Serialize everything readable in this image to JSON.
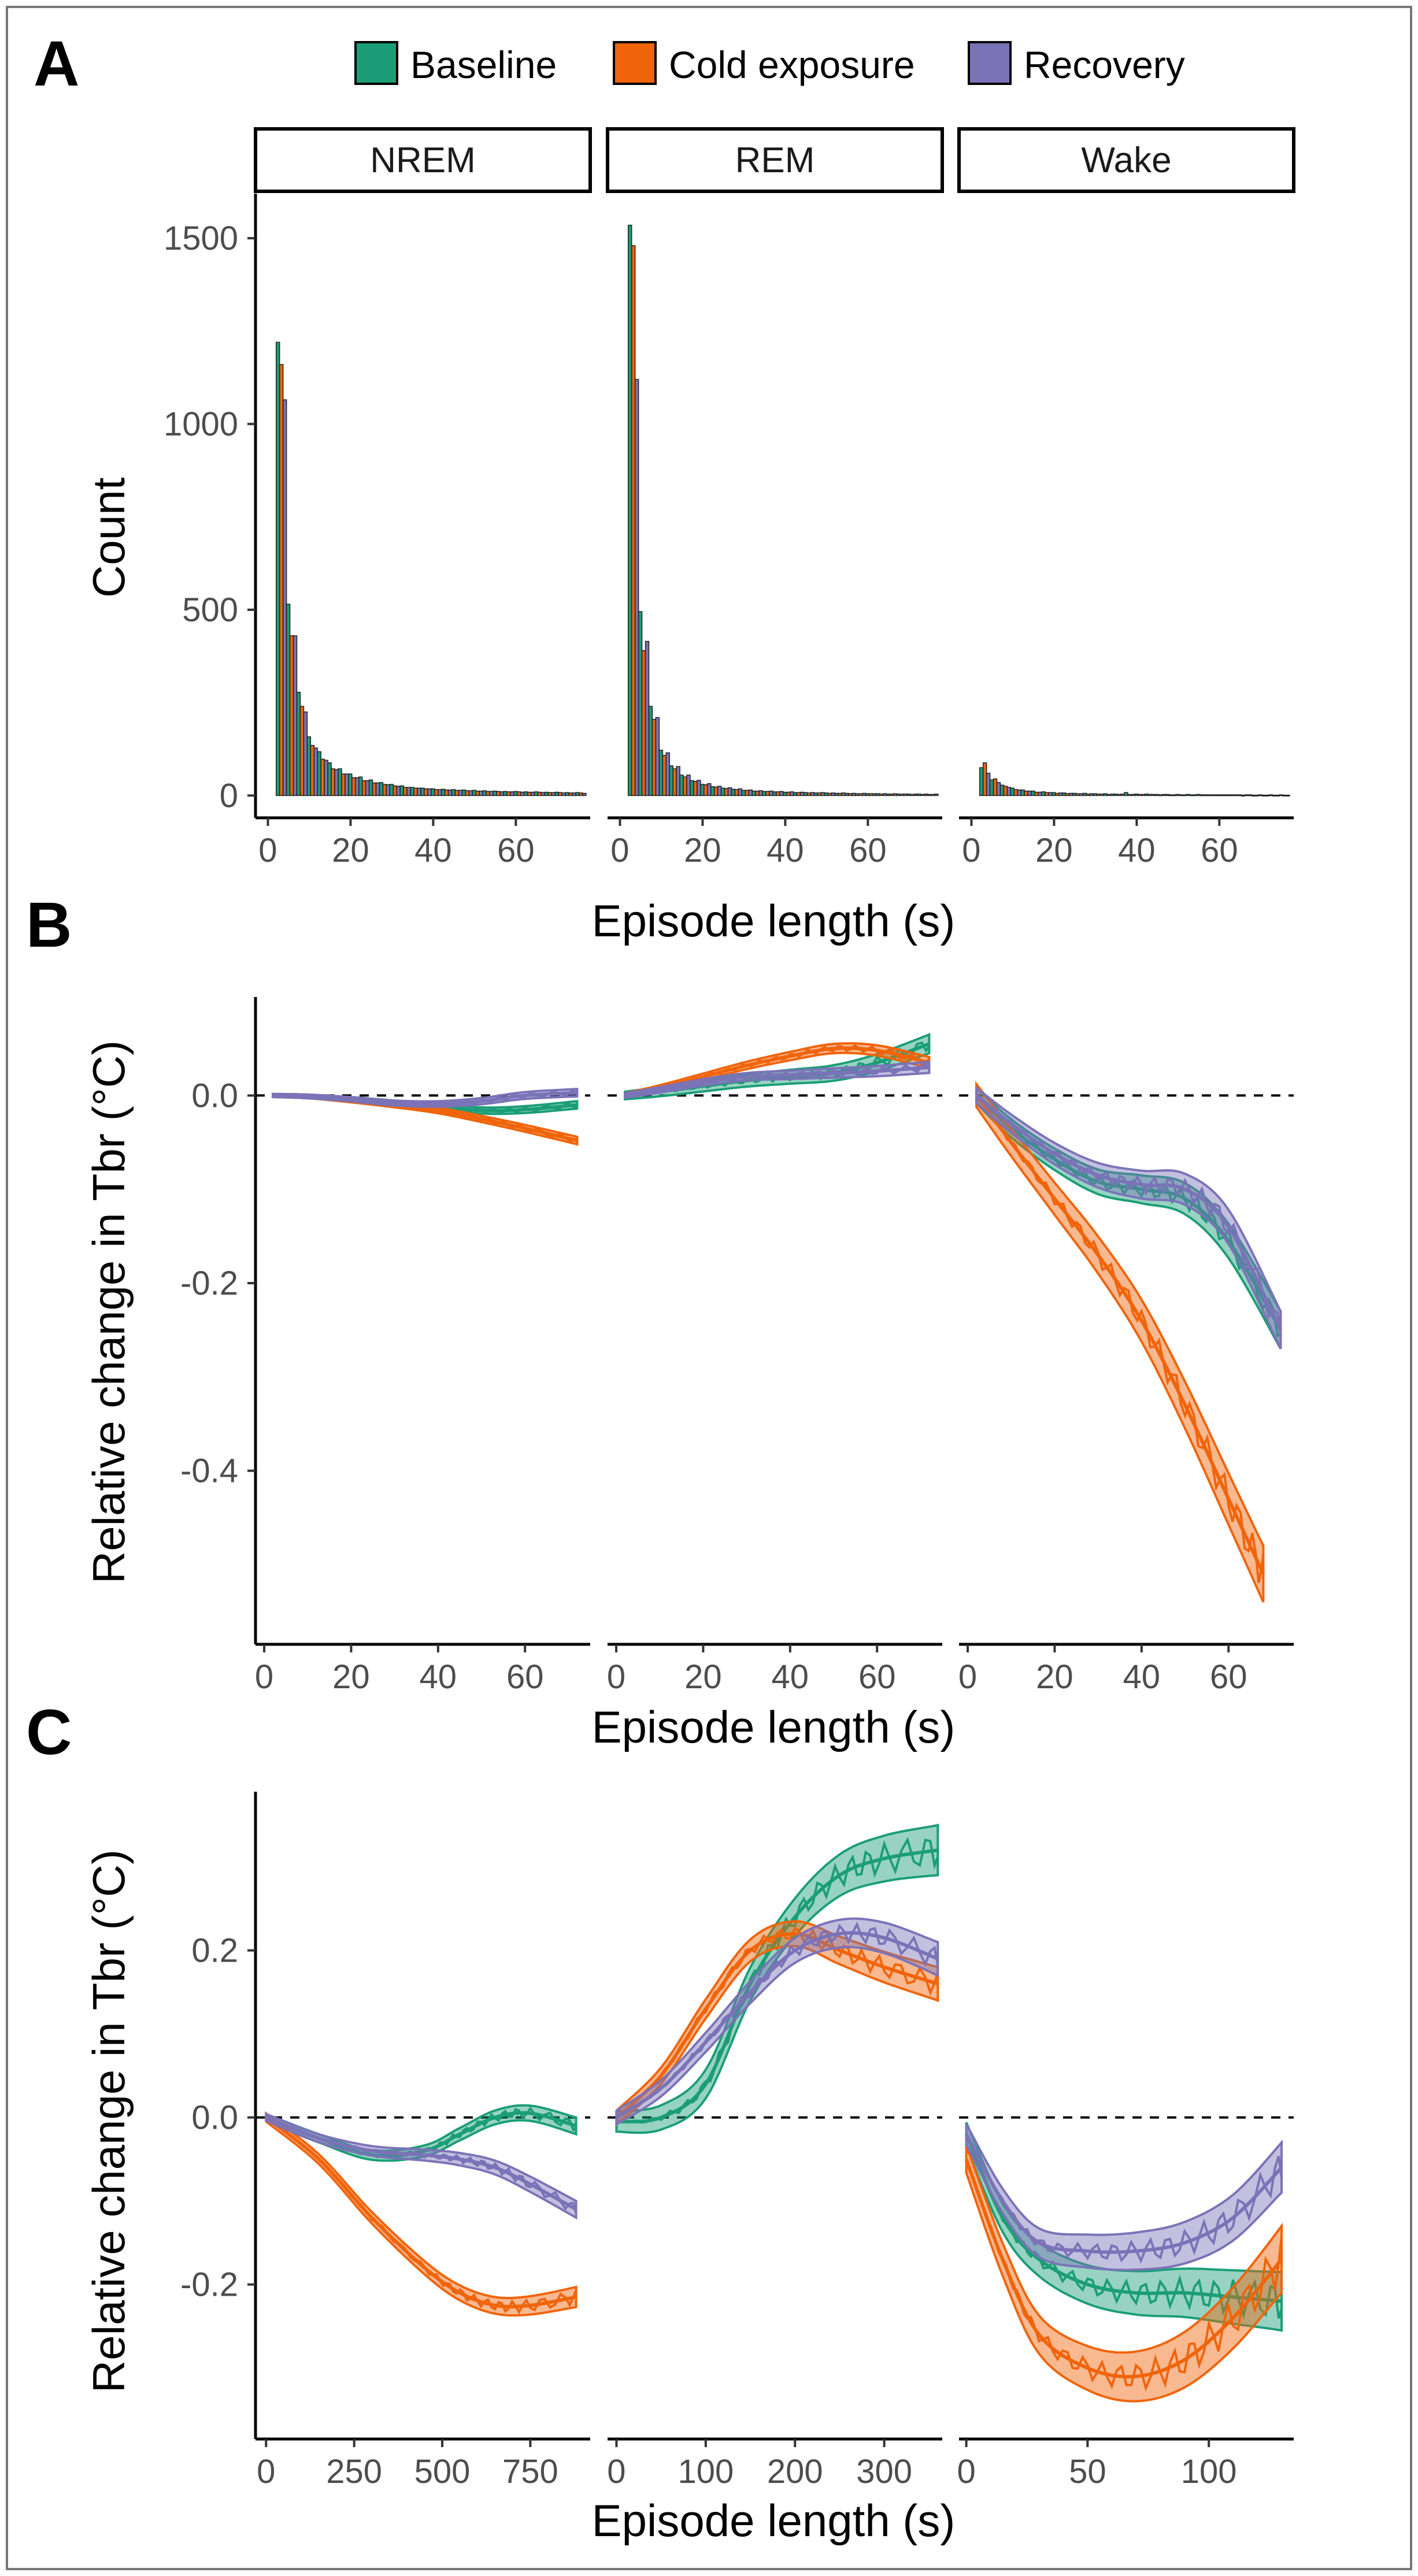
{
  "colors": {
    "Baseline": "#1b9e77",
    "Cold exposure": "#f0640a",
    "Recovery": "#7b73b8"
  },
  "legend": {
    "items": [
      "Baseline",
      "Cold exposure",
      "Recovery"
    ]
  },
  "facets": [
    "NREM",
    "REM",
    "Wake"
  ],
  "panel_labels": {
    "a": "A",
    "b": "B",
    "c": "C"
  },
  "chart_data": [
    {
      "id": "A",
      "type": "bar",
      "title": "",
      "xlabel": "Episode length (s)",
      "ylabel": "Count",
      "xlim": [
        -3,
        78
      ],
      "ylim": [
        -60,
        1620
      ],
      "xticks": [
        0,
        20,
        40,
        60
      ],
      "yticks": [
        0,
        500,
        1000,
        1500
      ],
      "bin_width": 2.5,
      "bin_starts": [
        2,
        4.5,
        7,
        9.5,
        12,
        14.5,
        17,
        19.5,
        22,
        24.5,
        27,
        29.5,
        32,
        34.5,
        37,
        39.5,
        42,
        44.5,
        47,
        49.5,
        52,
        54.5,
        57,
        59.5,
        62,
        64.5,
        67,
        69.5,
        72,
        74.5
      ],
      "facets": [
        {
          "name": "NREM",
          "series": [
            {
              "name": "Baseline",
              "values": [
                1220,
                515,
                278,
                158,
                118,
                88,
                72,
                58,
                50,
                42,
                35,
                30,
                26,
                22,
                20,
                18,
                17,
                16,
                15,
                14,
                13,
                12,
                11,
                11,
                10,
                10,
                9,
                9,
                8,
                8
              ]
            },
            {
              "name": "Cold exposure",
              "values": [
                1160,
                430,
                240,
                135,
                98,
                72,
                58,
                48,
                40,
                34,
                30,
                26,
                22,
                20,
                18,
                16,
                15,
                14,
                13,
                12,
                11,
                11,
                10,
                10,
                9,
                9,
                8,
                8,
                7,
                7
              ]
            },
            {
              "name": "Recovery",
              "values": [
                1065,
                430,
                225,
                128,
                95,
                70,
                58,
                48,
                40,
                34,
                29,
                25,
                22,
                20,
                18,
                16,
                15,
                14,
                13,
                12,
                11,
                10,
                10,
                9,
                9,
                8,
                8,
                7,
                7,
                6
              ]
            }
          ]
        },
        {
          "name": "REM",
          "series": [
            {
              "name": "Baseline",
              "values": [
                1535,
                495,
                240,
                122,
                80,
                55,
                40,
                30,
                24,
                20,
                17,
                14,
                12,
                11,
                10,
                9,
                8,
                8,
                7,
                7,
                6,
                6,
                5,
                5,
                5,
                4,
                4,
                4,
                4,
                3
              ]
            },
            {
              "name": "Cold exposure",
              "values": [
                1480,
                390,
                205,
                108,
                72,
                50,
                38,
                29,
                23,
                19,
                16,
                14,
                12,
                11,
                10,
                9,
                8,
                7,
                7,
                6,
                6,
                5,
                5,
                5,
                4,
                4,
                4,
                3,
                3,
                3
              ]
            },
            {
              "name": "Recovery",
              "values": [
                1120,
                415,
                210,
                115,
                78,
                55,
                41,
                32,
                25,
                21,
                18,
                15,
                13,
                12,
                11,
                10,
                9,
                8,
                8,
                7,
                7,
                6,
                6,
                5,
                5,
                5,
                4,
                4,
                4,
                4
              ]
            }
          ]
        },
        {
          "name": "Wake",
          "series": [
            {
              "name": "Baseline",
              "values": [
                75,
                42,
                28,
                20,
                15,
                12,
                10,
                8,
                7,
                6,
                6,
                5,
                5,
                4,
                8,
                4,
                4,
                3,
                3,
                3,
                3,
                3,
                2,
                2,
                2,
                2,
                2,
                2,
                2,
                2
              ]
            },
            {
              "name": "Cold exposure",
              "values": [
                88,
                45,
                25,
                16,
                12,
                9,
                8,
                6,
                5,
                5,
                4,
                4,
                3,
                3,
                3,
                3,
                3,
                2,
                2,
                2,
                2,
                2,
                2,
                2,
                2,
                1,
                1,
                1,
                1,
                1
              ]
            },
            {
              "name": "Recovery",
              "values": [
                60,
                35,
                22,
                15,
                12,
                9,
                8,
                7,
                6,
                5,
                5,
                4,
                4,
                4,
                3,
                3,
                3,
                3,
                2,
                2,
                2,
                2,
                2,
                2,
                2,
                2,
                1,
                1,
                1,
                1
              ]
            }
          ]
        }
      ]
    },
    {
      "id": "B",
      "type": "line",
      "title": "",
      "xlabel": "Episode length (s)",
      "ylabel": "Relative change in Tbr (°C)",
      "ylim": [
        -0.585,
        0.105
      ],
      "yticks": [
        0.0,
        -0.2,
        -0.4
      ],
      "yticklabels": [
        "0.0",
        "-0.2",
        "-0.4"
      ],
      "reference_line": 0,
      "facets": [
        {
          "name": "NREM",
          "xlim": [
            -2,
            75
          ],
          "xticks": [
            0,
            20,
            40,
            60
          ],
          "series": [
            {
              "name": "Baseline",
              "x": [
                2,
                10,
                20,
                30,
                40,
                50,
                60,
                72
              ],
              "y": [
                0.0,
                -0.001,
                -0.004,
                -0.008,
                -0.012,
                -0.016,
                -0.015,
                -0.01
              ],
              "band": 0.004
            },
            {
              "name": "Cold exposure",
              "x": [
                2,
                10,
                20,
                30,
                40,
                50,
                60,
                72
              ],
              "y": [
                0.0,
                -0.001,
                -0.005,
                -0.01,
                -0.016,
                -0.025,
                -0.035,
                -0.048
              ],
              "band": 0.004
            },
            {
              "name": "Recovery",
              "x": [
                2,
                10,
                20,
                30,
                40,
                50,
                60,
                72
              ],
              "y": [
                0.0,
                -0.001,
                -0.004,
                -0.008,
                -0.009,
                -0.006,
                0.0,
                0.003
              ],
              "band": 0.004
            }
          ]
        },
        {
          "name": "REM",
          "xlim": [
            -2,
            75
          ],
          "xticks": [
            0,
            20,
            40,
            60
          ],
          "series": [
            {
              "name": "Baseline",
              "x": [
                2,
                10,
                20,
                30,
                40,
                50,
                60,
                72
              ],
              "y": [
                0.0,
                0.004,
                0.01,
                0.016,
                0.02,
                0.024,
                0.035,
                0.055
              ],
              "band": 0.01
            },
            {
              "name": "Cold exposure",
              "x": [
                2,
                10,
                20,
                30,
                40,
                50,
                60,
                72
              ],
              "y": [
                0.0,
                0.008,
                0.02,
                0.032,
                0.042,
                0.05,
                0.048,
                0.035
              ],
              "band": 0.006
            },
            {
              "name": "Recovery",
              "x": [
                2,
                10,
                20,
                30,
                40,
                50,
                60,
                72
              ],
              "y": [
                0.0,
                0.006,
                0.014,
                0.02,
                0.022,
                0.024,
                0.026,
                0.03
              ],
              "band": 0.006
            }
          ]
        },
        {
          "name": "Wake",
          "xlim": [
            -2,
            75
          ],
          "xticks": [
            0,
            20,
            40,
            60
          ],
          "series": [
            {
              "name": "Baseline",
              "x": [
                2,
                10,
                20,
                30,
                40,
                50,
                60,
                72
              ],
              "y": [
                0.0,
                -0.035,
                -0.068,
                -0.092,
                -0.1,
                -0.11,
                -0.155,
                -0.25
              ],
              "band": 0.02
            },
            {
              "name": "Cold exposure",
              "x": [
                2,
                10,
                20,
                30,
                40,
                50,
                60,
                68
              ],
              "y": [
                0.0,
                -0.05,
                -0.11,
                -0.17,
                -0.24,
                -0.33,
                -0.43,
                -0.51
              ],
              "band": 0.03
            },
            {
              "name": "Recovery",
              "x": [
                2,
                10,
                20,
                30,
                40,
                50,
                60,
                72
              ],
              "y": [
                0.0,
                -0.03,
                -0.062,
                -0.085,
                -0.095,
                -0.1,
                -0.14,
                -0.25
              ],
              "band": 0.02
            }
          ]
        }
      ]
    },
    {
      "id": "C",
      "type": "line",
      "title": "",
      "xlabel": "Episode length (s)",
      "ylabel": "Relative change in Tbr (°C)",
      "ylim": [
        -0.385,
        0.39
      ],
      "yticks": [
        0.2,
        0.0,
        -0.2
      ],
      "yticklabels": [
        "0.2",
        "0.0",
        "-0.2"
      ],
      "reference_line": 0,
      "facets": [
        {
          "name": "NREM",
          "xlim": [
            -30,
            920
          ],
          "xticks": [
            0,
            250,
            500,
            750
          ],
          "series": [
            {
              "name": "Baseline",
              "x": [
                0,
                150,
                300,
                450,
                550,
                650,
                750,
                880
              ],
              "y": [
                0.0,
                -0.025,
                -0.045,
                -0.04,
                -0.02,
                0.0,
                0.005,
                -0.01
              ],
              "band": 0.01
            },
            {
              "name": "Cold exposure",
              "x": [
                0,
                150,
                300,
                450,
                550,
                650,
                750,
                880
              ],
              "y": [
                0.0,
                -0.05,
                -0.12,
                -0.18,
                -0.21,
                -0.225,
                -0.225,
                -0.215
              ],
              "band": 0.012
            },
            {
              "name": "Recovery",
              "x": [
                0,
                150,
                300,
                450,
                550,
                650,
                750,
                880
              ],
              "y": [
                0.0,
                -0.025,
                -0.04,
                -0.045,
                -0.05,
                -0.06,
                -0.08,
                -0.11
              ],
              "band": 0.01
            }
          ]
        },
        {
          "name": "REM",
          "xlim": [
            -10,
            365
          ],
          "xticks": [
            0,
            100,
            200,
            300
          ],
          "series": [
            {
              "name": "Baseline",
              "x": [
                0,
                50,
                100,
                150,
                200,
                250,
                300,
                360
              ],
              "y": [
                -0.005,
                0.0,
                0.04,
                0.16,
                0.24,
                0.29,
                0.31,
                0.32
              ],
              "band": 0.03
            },
            {
              "name": "Cold exposure",
              "x": [
                0,
                50,
                100,
                150,
                200,
                250,
                300,
                360
              ],
              "y": [
                0.0,
                0.05,
                0.13,
                0.2,
                0.22,
                0.2,
                0.18,
                0.16
              ],
              "band": 0.02
            },
            {
              "name": "Recovery",
              "x": [
                0,
                50,
                100,
                150,
                200,
                250,
                300,
                360
              ],
              "y": [
                0.0,
                0.035,
                0.09,
                0.15,
                0.2,
                0.22,
                0.215,
                0.19
              ],
              "band": 0.02
            }
          ]
        },
        {
          "name": "Wake",
          "xlim": [
            -3,
            135
          ],
          "xticks": [
            0,
            50,
            100
          ],
          "series": [
            {
              "name": "Baseline",
              "x": [
                0,
                15,
                30,
                50,
                70,
                90,
                110,
                130
              ],
              "y": [
                -0.02,
                -0.12,
                -0.17,
                -0.2,
                -0.21,
                -0.21,
                -0.215,
                -0.22
              ],
              "band": 0.035
            },
            {
              "name": "Cold exposure",
              "x": [
                0,
                15,
                30,
                50,
                70,
                90,
                110,
                130
              ],
              "y": [
                -0.05,
                -0.17,
                -0.26,
                -0.3,
                -0.31,
                -0.29,
                -0.24,
                -0.17
              ],
              "band": 0.04
            },
            {
              "name": "Recovery",
              "x": [
                0,
                15,
                30,
                50,
                70,
                90,
                110,
                130
              ],
              "y": [
                -0.02,
                -0.1,
                -0.15,
                -0.16,
                -0.16,
                -0.15,
                -0.12,
                -0.06
              ],
              "band": 0.03
            }
          ]
        }
      ]
    }
  ]
}
